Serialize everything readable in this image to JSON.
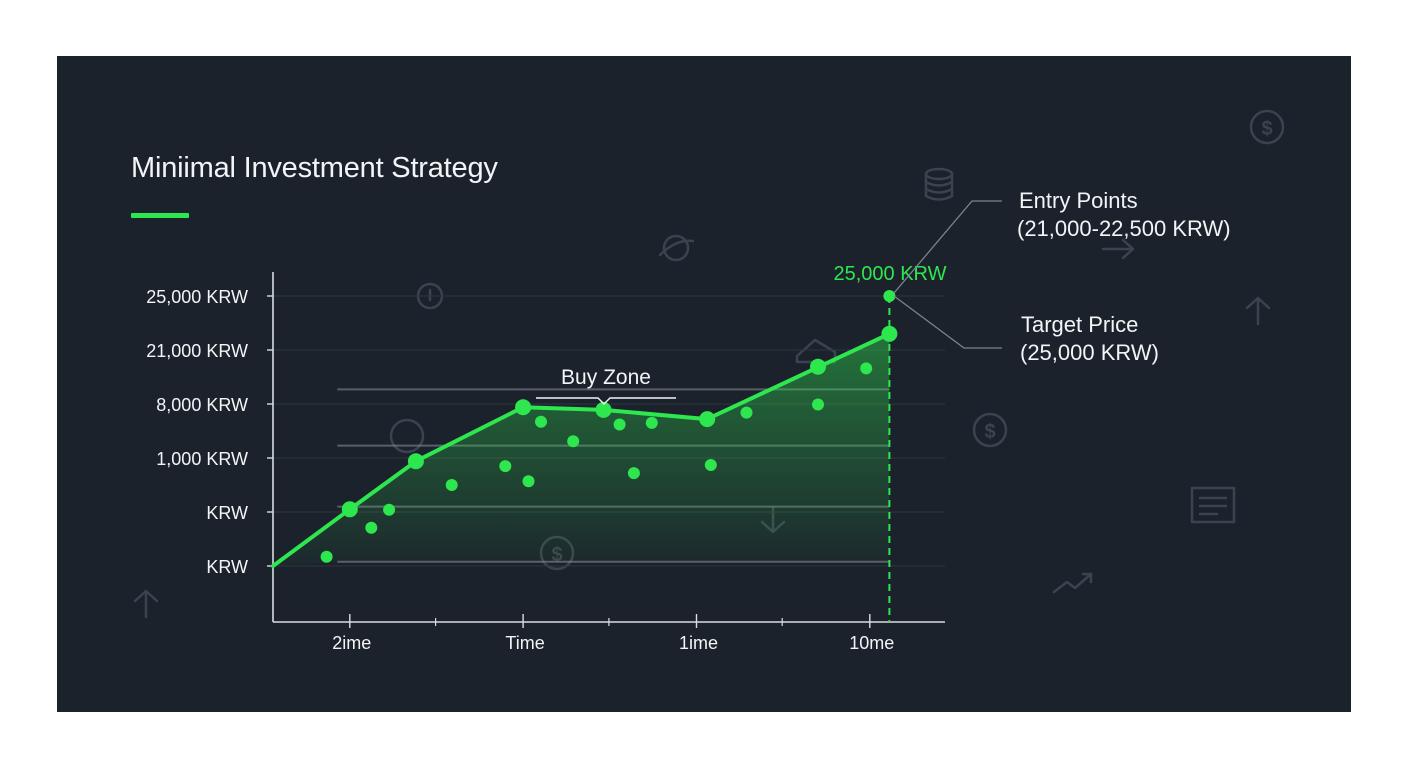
{
  "header": {
    "title": "Miniimal Investment Strategy"
  },
  "colors": {
    "background": "#1c222c",
    "accent": "#2ee64e",
    "axis": "#d8dde2",
    "text": "#f2f4f6",
    "icon": "#3a434f"
  },
  "icons": [
    "dollar-icon",
    "coins-icon",
    "planet-icon",
    "compass-icon",
    "arrow-right-icon",
    "arrow-up-icon",
    "tag-icon",
    "document-icon",
    "arrow-down-icon",
    "trend-up-icon"
  ],
  "chart_data": {
    "type": "line",
    "title": "Miniimal Investment Strategy",
    "xlabel": "",
    "ylabel": "",
    "y_tick_labels": [
      "25,000 KRW",
      "21,000 KRW",
      "8,000 KRW",
      "1,000 KRW",
      "KRW",
      "KRW"
    ],
    "x_tick_labels": [
      "2ime",
      "Time",
      "1ime",
      "10me"
    ],
    "ylim": [
      0,
      6
    ],
    "xlim": [
      0,
      37
    ],
    "grid": true,
    "legend": "none",
    "series": [
      {
        "x": [
          0,
          4.3,
          8,
          14,
          18.5,
          24.3,
          34.5
        ],
        "y": [
          0,
          1.05,
          1.94,
          2.94,
          2.89,
          2.72,
          4.3
        ],
        "marker_points": [
          [
            4.3,
            1.05
          ],
          [
            8,
            1.94
          ],
          [
            14,
            2.94
          ],
          [
            18.5,
            2.89
          ],
          [
            24.3,
            2.72
          ],
          [
            30.5,
            3.69
          ],
          [
            34.5,
            4.3
          ]
        ]
      }
    ],
    "scatter_points": [
      [
        3,
        0.17
      ],
      [
        5.5,
        0.71
      ],
      [
        6.5,
        1.04
      ],
      [
        10,
        1.5
      ],
      [
        13,
        1.85
      ],
      [
        14.3,
        1.57
      ],
      [
        15,
        2.67
      ],
      [
        16.8,
        2.31
      ],
      [
        19.4,
        2.62
      ],
      [
        20.2,
        1.72
      ],
      [
        21.2,
        2.65
      ],
      [
        24.5,
        1.87
      ],
      [
        26.5,
        2.84
      ],
      [
        30.5,
        2.99
      ],
      [
        33.2,
        3.66
      ],
      [
        34.5,
        5.0
      ]
    ],
    "reference_lines_y": [
      0.08,
      1.1,
      2.23,
      3.27
    ],
    "annotations": {
      "buy_zone": "Buy Zone",
      "target_label": "25,000 KRW",
      "entry_points": [
        "Entry Points",
        "(21,000-22,500 KRW)"
      ],
      "target_price": [
        "Target Price",
        "(25,000 KRW)"
      ]
    }
  }
}
